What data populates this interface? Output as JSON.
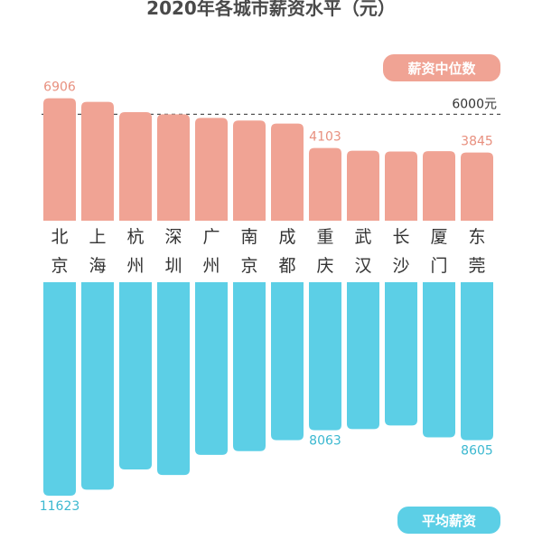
{
  "chart_data": {
    "type": "bar",
    "title": "2020年各城市薪资水平（元）",
    "categories": [
      "北京",
      "上海",
      "杭州",
      "深圳",
      "广州",
      "南京",
      "成都",
      "重庆",
      "武汉",
      "长沙",
      "厦门",
      "东莞"
    ],
    "series": [
      {
        "name": "薪资中位数",
        "values": [
          6906,
          6700,
          6120,
          6000,
          5800,
          5650,
          5480,
          4103,
          3950,
          3900,
          3920,
          3845
        ],
        "color": "#f0a394",
        "label_color": "#e8907f"
      },
      {
        "name": "平均薪资",
        "values": [
          11623,
          11300,
          10200,
          10500,
          9400,
          9200,
          8600,
          8063,
          8000,
          7800,
          8450,
          8605
        ],
        "color": "#5ccfe6",
        "label_color": "#3bb8d0"
      }
    ],
    "data_labels": [
      {
        "series": 0,
        "index": 0,
        "text": "6906"
      },
      {
        "series": 0,
        "index": 7,
        "text": "4103"
      },
      {
        "series": 0,
        "index": 11,
        "text": "3845"
      },
      {
        "series": 1,
        "index": 0,
        "text": "11623"
      },
      {
        "series": 1,
        "index": 7,
        "text": "8063"
      },
      {
        "series": 1,
        "index": 11,
        "text": "8605"
      }
    ],
    "reference_line": {
      "series": 0,
      "value": 6000,
      "label": "6000元"
    },
    "legend": [
      "薪资中位数",
      "平均薪资"
    ],
    "legend_placement": "top-right / bottom-right badges",
    "grid": false
  }
}
